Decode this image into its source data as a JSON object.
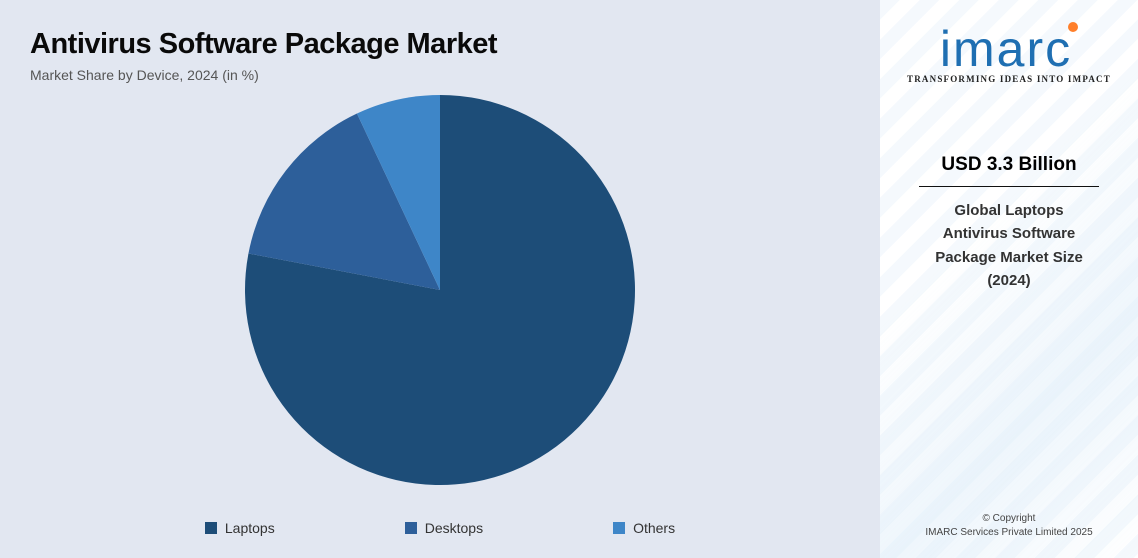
{
  "header": {
    "title": "Antivirus Software Package Market",
    "subtitle": "Market Share by Device, 2024 (in %)"
  },
  "chart": {
    "type": "pie",
    "background_color": "#e2e7f1",
    "radius": 195,
    "start_angle_deg": -90,
    "slices": [
      {
        "label": "Laptops",
        "value": 78,
        "color": "#1d4d78"
      },
      {
        "label": "Desktops",
        "value": 15,
        "color": "#2d5f9a"
      },
      {
        "label": "Others",
        "value": 7,
        "color": "#3e86c8"
      }
    ],
    "legend_swatch_size": 12,
    "legend_fontsize": 14
  },
  "sidebar": {
    "brand_text": "imarc",
    "brand_color": "#1f6fb2",
    "dot_color": "#ff7f2a",
    "tagline": "TRANSFORMING IDEAS INTO IMPACT",
    "stat_value": "USD 3.3 Billion",
    "stat_desc_line1": "Global Laptops",
    "stat_desc_line2": "Antivirus Software",
    "stat_desc_line3": "Package Market Size",
    "stat_desc_line4": "(2024)",
    "copyright_line1": "© Copyright",
    "copyright_line2": "IMARC Services Private Limited 2025"
  }
}
